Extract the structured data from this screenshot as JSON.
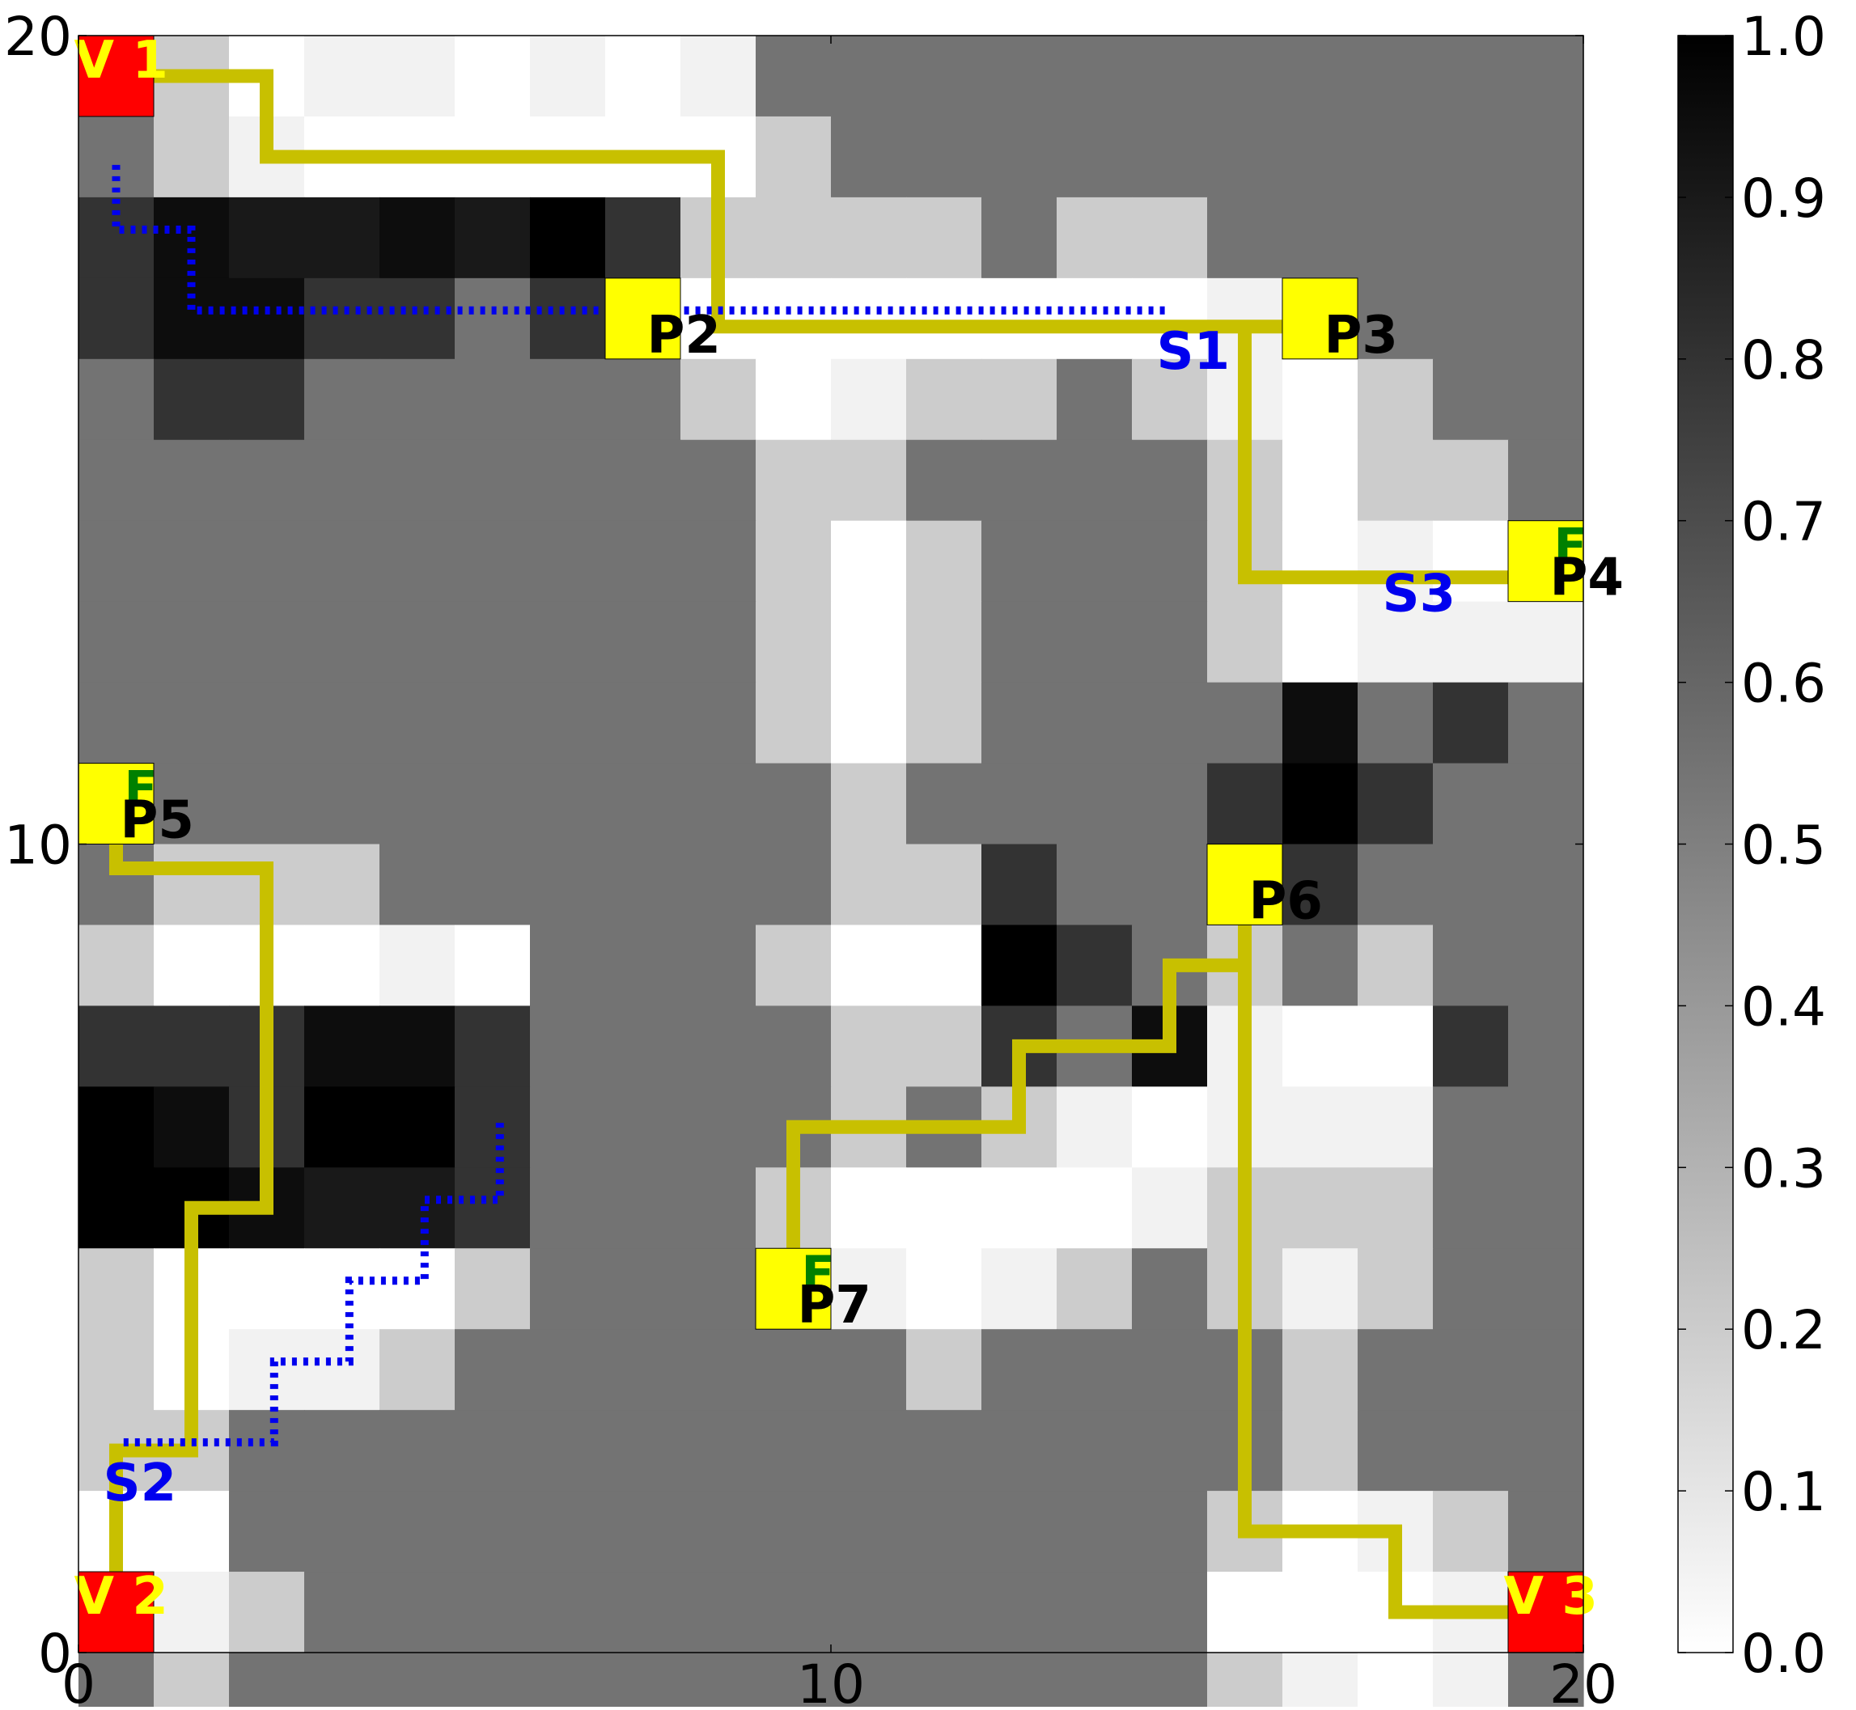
{
  "chart_data": {
    "type": "heatmap",
    "title": "",
    "xlabel": "",
    "ylabel": "",
    "xlim": [
      0,
      20
    ],
    "ylim": [
      0,
      20
    ],
    "x_ticks": [
      "0",
      "10",
      "20"
    ],
    "y_ticks": [
      "0",
      "10",
      "20"
    ],
    "colormap": "gray_r",
    "grid": false,
    "colorbar": {
      "range": [
        0.0,
        1.0
      ],
      "position": "right",
      "tick_labels": [
        "0.0",
        "0.1",
        "0.2",
        "0.3",
        "0.4",
        "0.5",
        "0.6",
        "0.7",
        "0.8",
        "0.9",
        "1.0"
      ]
    },
    "grid_values": [
      [
        0.55,
        0.2,
        0.0,
        0.05,
        0.05,
        0.0,
        0.05,
        0.0,
        0.05,
        0.55,
        0.55,
        0.55,
        0.55,
        0.55,
        0.55,
        0.55,
        0.55,
        0.55,
        0.55,
        0.55
      ],
      [
        0.55,
        0.2,
        0.05,
        0.0,
        0.0,
        0.0,
        0.0,
        0.0,
        0.0,
        0.2,
        0.55,
        0.55,
        0.55,
        0.55,
        0.55,
        0.55,
        0.55,
        0.55,
        0.55,
        0.55
      ],
      [
        0.8,
        0.95,
        0.9,
        0.9,
        0.95,
        0.9,
        1.0,
        0.8,
        0.2,
        0.2,
        0.2,
        0.2,
        0.55,
        0.2,
        0.2,
        0.55,
        0.55,
        0.55,
        0.55,
        0.55
      ],
      [
        0.8,
        0.95,
        0.95,
        0.8,
        0.8,
        0.55,
        0.8,
        0.55,
        0.0,
        0.0,
        0.0,
        0.0,
        0.0,
        0.0,
        0.0,
        0.05,
        0.55,
        0.55,
        0.55,
        0.55
      ],
      [
        0.55,
        0.8,
        0.8,
        0.55,
        0.55,
        0.55,
        0.55,
        0.55,
        0.2,
        0.0,
        0.05,
        0.2,
        0.2,
        0.55,
        0.2,
        0.05,
        0.0,
        0.2,
        0.55,
        0.55
      ],
      [
        0.55,
        0.55,
        0.55,
        0.55,
        0.55,
        0.55,
        0.55,
        0.55,
        0.55,
        0.2,
        0.2,
        0.55,
        0.55,
        0.55,
        0.55,
        0.2,
        0.0,
        0.2,
        0.2,
        0.55
      ],
      [
        0.55,
        0.55,
        0.55,
        0.55,
        0.55,
        0.55,
        0.55,
        0.55,
        0.55,
        0.2,
        0.0,
        0.2,
        0.55,
        0.55,
        0.55,
        0.2,
        0.0,
        0.05,
        0.0,
        0.2
      ],
      [
        0.55,
        0.55,
        0.55,
        0.55,
        0.55,
        0.55,
        0.55,
        0.55,
        0.55,
        0.2,
        0.0,
        0.2,
        0.55,
        0.55,
        0.55,
        0.2,
        0.0,
        0.05,
        0.05,
        0.05
      ],
      [
        0.55,
        0.55,
        0.55,
        0.55,
        0.55,
        0.55,
        0.55,
        0.55,
        0.55,
        0.2,
        0.0,
        0.2,
        0.55,
        0.55,
        0.55,
        0.55,
        0.95,
        0.55,
        0.8,
        0.55
      ],
      [
        0.55,
        0.55,
        0.55,
        0.55,
        0.55,
        0.55,
        0.55,
        0.55,
        0.55,
        0.55,
        0.2,
        0.55,
        0.55,
        0.55,
        0.55,
        0.8,
        1.0,
        0.8,
        0.55,
        0.55
      ],
      [
        0.55,
        0.2,
        0.2,
        0.2,
        0.55,
        0.55,
        0.55,
        0.55,
        0.55,
        0.55,
        0.2,
        0.2,
        0.8,
        0.55,
        0.55,
        0.55,
        0.8,
        0.55,
        0.55,
        0.55
      ],
      [
        0.2,
        0.0,
        0.0,
        0.0,
        0.05,
        0.0,
        0.55,
        0.55,
        0.55,
        0.2,
        0.0,
        0.0,
        1.0,
        0.8,
        0.55,
        0.2,
        0.55,
        0.2,
        0.55,
        0.55
      ],
      [
        0.8,
        0.8,
        0.8,
        0.95,
        0.95,
        0.8,
        0.55,
        0.55,
        0.55,
        0.55,
        0.2,
        0.2,
        0.8,
        0.55,
        0.95,
        0.05,
        0.0,
        0.0,
        0.8,
        0.55
      ],
      [
        1.0,
        0.95,
        0.8,
        1.0,
        1.0,
        0.8,
        0.55,
        0.55,
        0.55,
        0.55,
        0.2,
        0.55,
        0.2,
        0.05,
        0.0,
        0.05,
        0.05,
        0.05,
        0.55,
        0.55
      ],
      [
        1.0,
        1.0,
        0.95,
        0.9,
        0.9,
        0.8,
        0.55,
        0.55,
        0.55,
        0.2,
        0.0,
        0.0,
        0.0,
        0.0,
        0.05,
        0.2,
        0.2,
        0.2,
        0.55,
        0.55
      ],
      [
        0.2,
        0.0,
        0.0,
        0.0,
        0.0,
        0.2,
        0.55,
        0.55,
        0.55,
        0.55,
        0.05,
        0.0,
        0.05,
        0.2,
        0.55,
        0.2,
        0.05,
        0.2,
        0.55,
        0.55
      ],
      [
        0.2,
        0.0,
        0.05,
        0.05,
        0.2,
        0.55,
        0.55,
        0.55,
        0.55,
        0.55,
        0.55,
        0.2,
        0.55,
        0.55,
        0.55,
        0.55,
        0.2,
        0.55,
        0.55,
        0.55
      ],
      [
        0.2,
        0.2,
        0.55,
        0.55,
        0.55,
        0.55,
        0.55,
        0.55,
        0.55,
        0.55,
        0.55,
        0.55,
        0.55,
        0.55,
        0.55,
        0.55,
        0.2,
        0.55,
        0.55,
        0.55
      ],
      [
        0.0,
        0.0,
        0.55,
        0.55,
        0.55,
        0.55,
        0.55,
        0.55,
        0.55,
        0.55,
        0.55,
        0.55,
        0.55,
        0.55,
        0.55,
        0.2,
        0.0,
        0.05,
        0.2,
        0.55
      ],
      [
        0.05,
        0.05,
        0.2,
        0.55,
        0.55,
        0.55,
        0.55,
        0.55,
        0.55,
        0.55,
        0.55,
        0.55,
        0.55,
        0.55,
        0.55,
        0.0,
        0.0,
        0.0,
        0.05,
        0.2
      ],
      [
        0.55,
        0.2,
        0.55,
        0.55,
        0.55,
        0.55,
        0.55,
        0.55,
        0.55,
        0.55,
        0.55,
        0.55,
        0.55,
        0.55,
        0.55,
        0.2,
        0.05,
        0.0,
        0.05,
        0.55
      ]
    ],
    "vehicles": [
      {
        "label": "V 1",
        "x": 0.5,
        "y": 19.5,
        "color": "#ff0000",
        "label_color": "#ffff00"
      },
      {
        "label": "V 2",
        "x": 0.5,
        "y": 0.5,
        "color": "#ff0000",
        "label_color": "#ffff00"
      },
      {
        "label": "V 3",
        "x": 19.5,
        "y": 0.5,
        "color": "#ff0000",
        "label_color": "#ffff00"
      }
    ],
    "points": [
      {
        "label": "P2",
        "x": 7.5,
        "y": 16.5,
        "color": "#ffff00",
        "f": false
      },
      {
        "label": "P3",
        "x": 16.5,
        "y": 16.5,
        "color": "#ffff00",
        "f": false
      },
      {
        "label": "P4",
        "x": 19.5,
        "y": 13.5,
        "color": "#ffff00",
        "f": true
      },
      {
        "label": "P5",
        "x": 0.5,
        "y": 10.5,
        "color": "#ffff00",
        "f": true
      },
      {
        "label": "P6",
        "x": 15.5,
        "y": 9.5,
        "color": "#ffff00",
        "f": false
      },
      {
        "label": "P7",
        "x": 9.5,
        "y": 4.5,
        "color": "#ffff00",
        "f": true
      }
    ],
    "f_label": "F",
    "sites": [
      {
        "label": "S1",
        "x": 14.5,
        "y": 16.5
      },
      {
        "label": "S2",
        "x": 0.5,
        "y": 2.5
      },
      {
        "label": "S3",
        "x": 17.5,
        "y": 13.5
      }
    ],
    "routes": [
      {
        "name": "",
        "color": "#c8c000",
        "style": "solid",
        "points": [
          [
            0.4,
            19.5
          ],
          [
            2.5,
            19.5
          ],
          [
            2.5,
            18.5
          ],
          [
            8.5,
            18.5
          ],
          [
            8.5,
            16.4
          ],
          [
            16.5,
            16.4
          ],
          [
            15.5,
            16.4
          ],
          [
            15.5,
            13.3
          ],
          [
            19.5,
            13.3
          ]
        ]
      },
      {
        "name": "",
        "color": "#c8c000",
        "style": "solid",
        "points": [
          [
            0.5,
            10.6
          ],
          [
            0.5,
            9.7
          ],
          [
            2.5,
            9.7
          ],
          [
            2.5,
            5.5
          ],
          [
            1.5,
            5.5
          ],
          [
            1.5,
            2.5
          ],
          [
            0.5,
            2.5
          ],
          [
            0.5,
            0.4
          ]
        ]
      },
      {
        "name": "",
        "color": "#c8c000",
        "style": "solid",
        "points": [
          [
            15.5,
            9.6
          ],
          [
            15.5,
            1.5
          ],
          [
            17.5,
            1.5
          ],
          [
            17.5,
            0.5
          ],
          [
            19.5,
            0.5
          ]
        ]
      },
      {
        "name": "",
        "color": "#c8c000",
        "style": "solid",
        "points": [
          [
            9.5,
            4.5
          ],
          [
            9.5,
            6.5
          ],
          [
            12.5,
            6.5
          ],
          [
            12.5,
            7.5
          ],
          [
            14.5,
            7.5
          ],
          [
            14.5,
            8.5
          ],
          [
            15.5,
            8.5
          ]
        ]
      },
      {
        "name": "",
        "color": "#0000ee",
        "style": "dotted",
        "points": [
          [
            0.5,
            18.4
          ],
          [
            0.5,
            17.6
          ],
          [
            1.5,
            17.6
          ],
          [
            1.5,
            16.6
          ],
          [
            14.5,
            16.6
          ]
        ]
      },
      {
        "name": "",
        "color": "#0000ee",
        "style": "dotted",
        "points": [
          [
            0.6,
            2.6
          ],
          [
            2.6,
            2.6
          ],
          [
            2.6,
            3.6
          ],
          [
            3.6,
            3.6
          ],
          [
            3.6,
            4.6
          ],
          [
            4.6,
            4.6
          ],
          [
            4.6,
            5.6
          ],
          [
            5.6,
            5.6
          ],
          [
            5.6,
            6.6
          ]
        ]
      }
    ]
  }
}
